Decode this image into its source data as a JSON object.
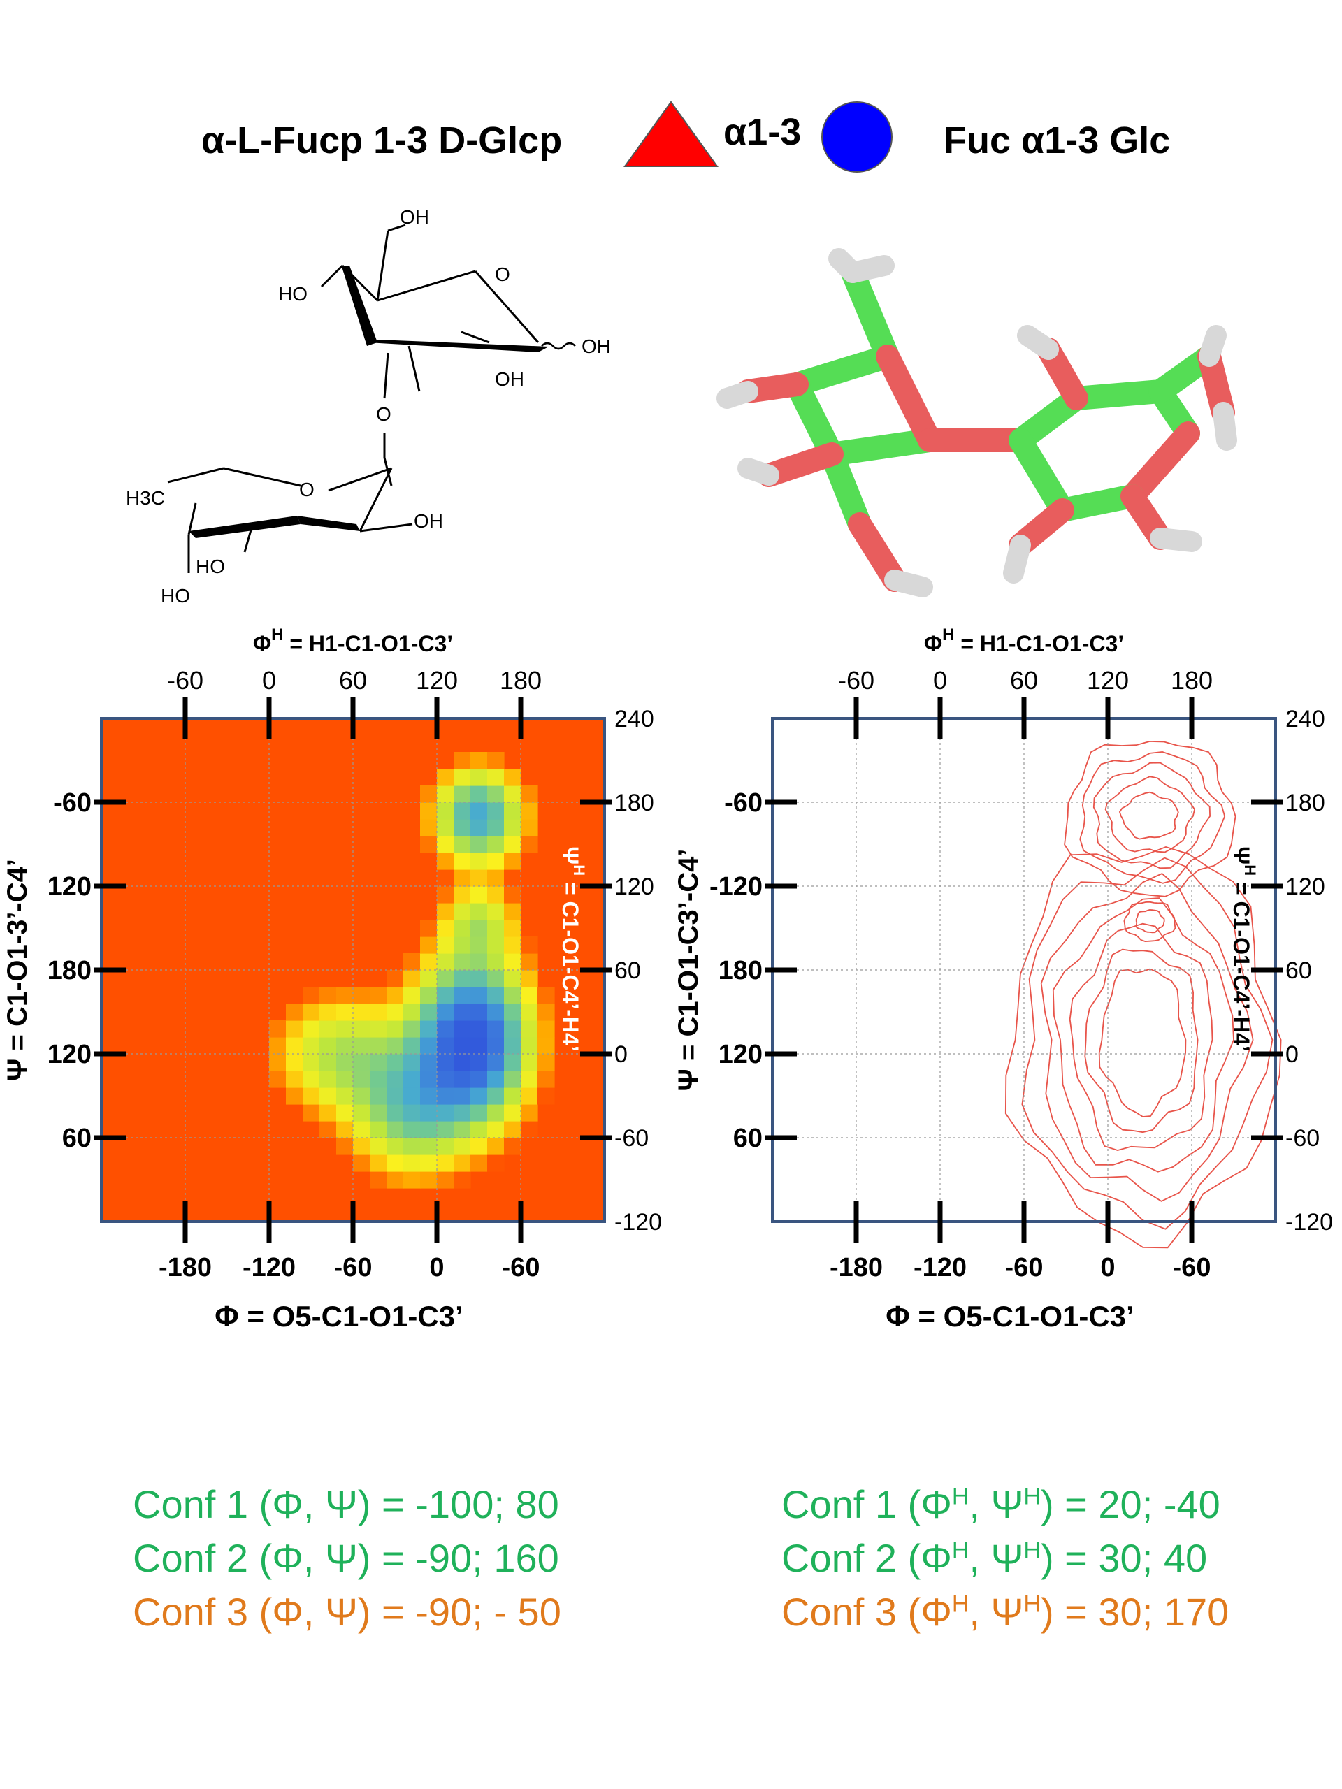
{
  "header": {
    "left_title": "α-L-Fucp 1-3 D-Glcp",
    "linkage": "α1-3",
    "right_title": "Fuc α1-3 Glc",
    "triangle_color": "#ff0000",
    "circle_color": "#0000ff"
  },
  "structure": {
    "labels": [
      "OH",
      "O",
      "HO",
      "OH",
      "OH",
      "O",
      "H3C",
      "O",
      "OH",
      "HO",
      "HO"
    ]
  },
  "colors": {
    "background_heatmap": "#ff5000",
    "contour": "#e8544a",
    "frame": "#3a5580",
    "green_text": "#1fb15a",
    "orange_text": "#e07a1c"
  },
  "chart_data": [
    {
      "type": "heatmap",
      "panel": "left",
      "top_label_main": "Φ",
      "top_label_sup": "H",
      "top_label_rest": " = H1-C1-O1-C3’",
      "top_ticks": [
        "-60",
        "0",
        "60",
        "120",
        "180"
      ],
      "bottom_label_main": "Φ",
      "bottom_label_rest": " = O5-C1-O1-C3’",
      "bottom_ticks": [
        "-180",
        "-120",
        "-60",
        "0",
        "-60"
      ],
      "left_label_main": "Ψ",
      "left_label_rest": " = C1-O1-3’-C4’",
      "left_ticks": [
        "-60",
        "120",
        "180",
        "120",
        "60"
      ],
      "right_label_main": "Ψ",
      "right_label_sup": "H",
      "right_label_rest": " = C1-O1-C4’-H4’",
      "right_ticks": [
        "240",
        "180",
        "120",
        "60",
        "0",
        "-60",
        "-120"
      ],
      "xlim": [
        -240,
        120
      ],
      "ylim": [
        -120,
        240
      ],
      "grid": true
    },
    {
      "type": "contour",
      "panel": "right",
      "top_label_main": "Φ",
      "top_label_sup": "H",
      "top_label_rest": " = H1-C1-O1-C3’",
      "top_ticks": [
        "-60",
        "0",
        "60",
        "120",
        "180"
      ],
      "bottom_label_main": "Φ",
      "bottom_label_rest": " = O5-C1-O1-C3’",
      "bottom_ticks": [
        "-180",
        "-120",
        "-60",
        "0",
        "-60"
      ],
      "left_label_main": "Ψ",
      "left_label_rest": " = C1-O1-C3’-C4’",
      "left_ticks": [
        "-60",
        "-120",
        "180",
        "120",
        "60"
      ],
      "right_label_main": "Ψ",
      "right_label_sup": "H",
      "right_label_rest": " = C1-O1-C4’-H4’",
      "right_ticks": [
        "240",
        "180",
        "120",
        "60",
        "0",
        "-60",
        "-120"
      ],
      "xlim": [
        -240,
        120
      ],
      "ylim": [
        -120,
        240
      ],
      "grid": true
    }
  ],
  "conformations": {
    "left": [
      {
        "prefix": "Conf 1 (",
        "a": "Φ",
        "b": "Ψ",
        "value": ") = -100; 80",
        "color": "green"
      },
      {
        "prefix": "Conf 2 (",
        "a": "Φ",
        "b": "Ψ",
        "value": ") = -90;  160",
        "color": "green"
      },
      {
        "prefix": "Conf 3 (",
        "a": "Φ",
        "b": "Ψ",
        "value": ") = -90; - 50",
        "color": "orange"
      }
    ],
    "right": [
      {
        "prefix": "Conf 1 (",
        "a": "Φ",
        "a_sup": "H",
        "b": "Ψ",
        "b_sup": "H",
        "value": ") = 20; -40",
        "color": "green"
      },
      {
        "prefix": "Conf 2 (",
        "a": "Φ",
        "a_sup": "H",
        "b": "Ψ",
        "b_sup": "H",
        "value": ") = 30; 40",
        "color": "green"
      },
      {
        "prefix": "Conf 3 (",
        "a": "Φ",
        "a_sup": "H",
        "b": "Ψ",
        "b_sup": "H",
        "value": ") = 30; 170",
        "color": "orange"
      }
    ]
  }
}
